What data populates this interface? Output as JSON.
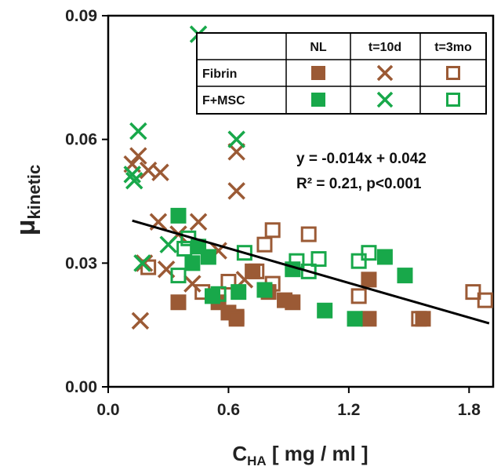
{
  "chart_data": {
    "type": "scatter",
    "xlabel_main": "C",
    "xlabel_sub": "HA",
    "xlabel_rest": " [ mg / ml ]",
    "ylabel_main": "μ",
    "ylabel_sub": "kinetic",
    "xlim": [
      0.0,
      1.92
    ],
    "ylim": [
      0.0,
      0.09
    ],
    "xticks": [
      0.0,
      0.6,
      1.2,
      1.8
    ],
    "xtick_labels": [
      "0.0",
      "0.6",
      "1.2",
      "1.8"
    ],
    "yticks": [
      0.0,
      0.03,
      0.06,
      0.09
    ],
    "ytick_labels": [
      "0.00",
      "0.03",
      "0.06",
      "0.09"
    ],
    "grid": false,
    "colors": {
      "brown": "#9b5a35",
      "green": "#18a84a",
      "line": "#000000"
    },
    "legend": {
      "placement": "top-right",
      "columns": [
        "NL",
        "t=10d",
        "t=3mo"
      ],
      "rows": [
        "Fibrin",
        "F+MSC"
      ]
    },
    "annotation": {
      "equation": "y = -0.014x + 0.042",
      "stats": "R² = 0.21, p<0.001"
    },
    "fit_line": {
      "x": [
        0.12,
        1.9
      ],
      "y": [
        0.0403,
        0.0154
      ]
    },
    "series": [
      {
        "name": "Fibrin NL",
        "color": "brown",
        "marker": "filled-square",
        "points": [
          [
            0.35,
            0.0205
          ],
          [
            0.55,
            0.0205
          ],
          [
            0.6,
            0.018
          ],
          [
            0.64,
            0.017
          ],
          [
            0.72,
            0.028
          ],
          [
            0.88,
            0.021
          ],
          [
            0.92,
            0.0205
          ],
          [
            1.3,
            0.0165
          ],
          [
            1.57,
            0.0165
          ],
          [
            1.3,
            0.026
          ],
          [
            0.8,
            0.023
          ]
        ]
      },
      {
        "name": "Fibrin t=10d",
        "color": "brown",
        "marker": "x",
        "points": [
          [
            0.12,
            0.054
          ],
          [
            0.15,
            0.056
          ],
          [
            0.2,
            0.0525
          ],
          [
            0.26,
            0.052
          ],
          [
            0.25,
            0.04
          ],
          [
            0.16,
            0.016
          ],
          [
            0.45,
            0.04
          ],
          [
            0.55,
            0.033
          ],
          [
            0.64,
            0.0475
          ],
          [
            0.64,
            0.057
          ],
          [
            0.18,
            0.03
          ],
          [
            0.29,
            0.0285
          ],
          [
            0.35,
            0.037
          ],
          [
            0.68,
            0.026
          ],
          [
            0.42,
            0.025
          ]
        ]
      },
      {
        "name": "Fibrin t=3mo",
        "color": "brown",
        "marker": "open-square",
        "points": [
          [
            0.2,
            0.029
          ],
          [
            0.47,
            0.023
          ],
          [
            0.6,
            0.0255
          ],
          [
            0.64,
            0.0165
          ],
          [
            0.74,
            0.028
          ],
          [
            0.78,
            0.0345
          ],
          [
            0.82,
            0.038
          ],
          [
            0.82,
            0.025
          ],
          [
            1.0,
            0.037
          ],
          [
            1.25,
            0.022
          ],
          [
            1.55,
            0.0165
          ],
          [
            1.82,
            0.023
          ],
          [
            1.88,
            0.021
          ]
        ]
      },
      {
        "name": "F+MSC NL",
        "color": "green",
        "marker": "filled-square",
        "points": [
          [
            0.35,
            0.0415
          ],
          [
            0.45,
            0.034
          ],
          [
            0.42,
            0.03
          ],
          [
            0.52,
            0.022
          ],
          [
            0.65,
            0.023
          ],
          [
            0.78,
            0.0235
          ],
          [
            0.92,
            0.0285
          ],
          [
            1.08,
            0.0185
          ],
          [
            1.23,
            0.0165
          ],
          [
            1.38,
            0.0315
          ],
          [
            1.48,
            0.027
          ],
          [
            0.5,
            0.0315
          ]
        ]
      },
      {
        "name": "F+MSC t=10d",
        "color": "green",
        "marker": "x",
        "points": [
          [
            0.12,
            0.0515
          ],
          [
            0.13,
            0.05
          ],
          [
            0.15,
            0.062
          ],
          [
            0.17,
            0.03
          ],
          [
            0.3,
            0.0345
          ],
          [
            0.45,
            0.0855
          ],
          [
            0.64,
            0.06
          ]
        ]
      },
      {
        "name": "F+MSC t=3mo",
        "color": "green",
        "marker": "open-square",
        "points": [
          [
            0.35,
            0.027
          ],
          [
            0.38,
            0.0335
          ],
          [
            0.4,
            0.036
          ],
          [
            0.55,
            0.0225
          ],
          [
            0.68,
            0.0325
          ],
          [
            0.94,
            0.0305
          ],
          [
            1.0,
            0.028
          ],
          [
            1.05,
            0.031
          ],
          [
            1.25,
            0.0305
          ],
          [
            1.3,
            0.0325
          ]
        ]
      }
    ]
  }
}
